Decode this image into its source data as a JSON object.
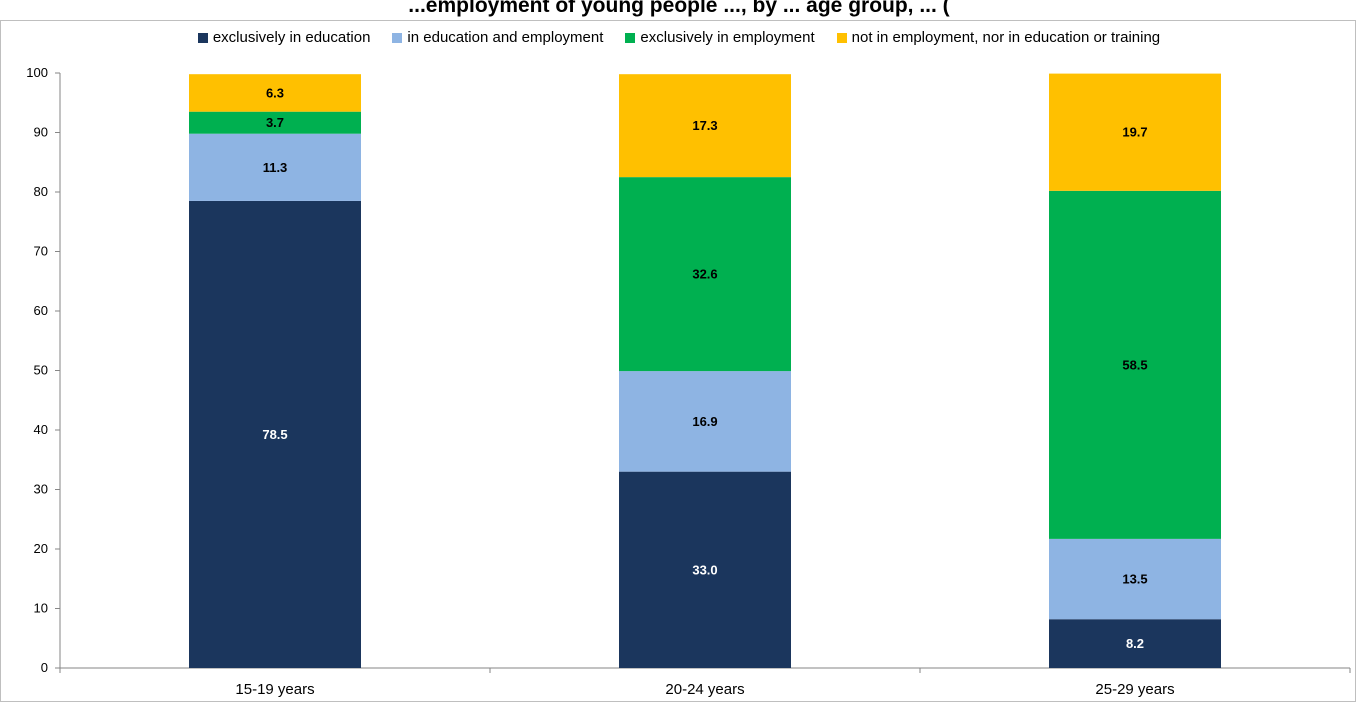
{
  "chart_data": {
    "type": "bar",
    "stacked": true,
    "title": "...employment of young people ..., by ... age group, ... (",
    "categories": [
      "15-19 years",
      "20-24 years",
      "25-29 years"
    ],
    "series": [
      {
        "name": "exclusively in education",
        "color": "#1b365d",
        "label_color": "#ffffff",
        "values": [
          78.5,
          33.0,
          8.2
        ],
        "labels": [
          "78.5",
          "33.0",
          "8.2"
        ]
      },
      {
        "name": "in education and employment",
        "color": "#8eb4e3",
        "label_color": "#000000",
        "values": [
          11.3,
          16.9,
          13.5
        ],
        "labels": [
          "11.3",
          "16.9",
          "13.5"
        ]
      },
      {
        "name": "exclusively in employment",
        "color": "#00b050",
        "label_color": "#000000",
        "values": [
          3.7,
          32.6,
          58.5
        ],
        "labels": [
          "3.7",
          "32.6",
          "58.5"
        ]
      },
      {
        "name": "not in employment, nor in education or training",
        "color": "#ffc000",
        "label_color": "#000000",
        "values": [
          6.3,
          17.3,
          19.7
        ],
        "labels": [
          "6.3",
          "17.3",
          "19.7"
        ]
      }
    ],
    "ylim": [
      0,
      100
    ],
    "yticks": [
      0,
      10,
      20,
      30,
      40,
      50,
      60,
      70,
      80,
      90,
      100
    ],
    "grid": false,
    "legend_position": "top"
  }
}
